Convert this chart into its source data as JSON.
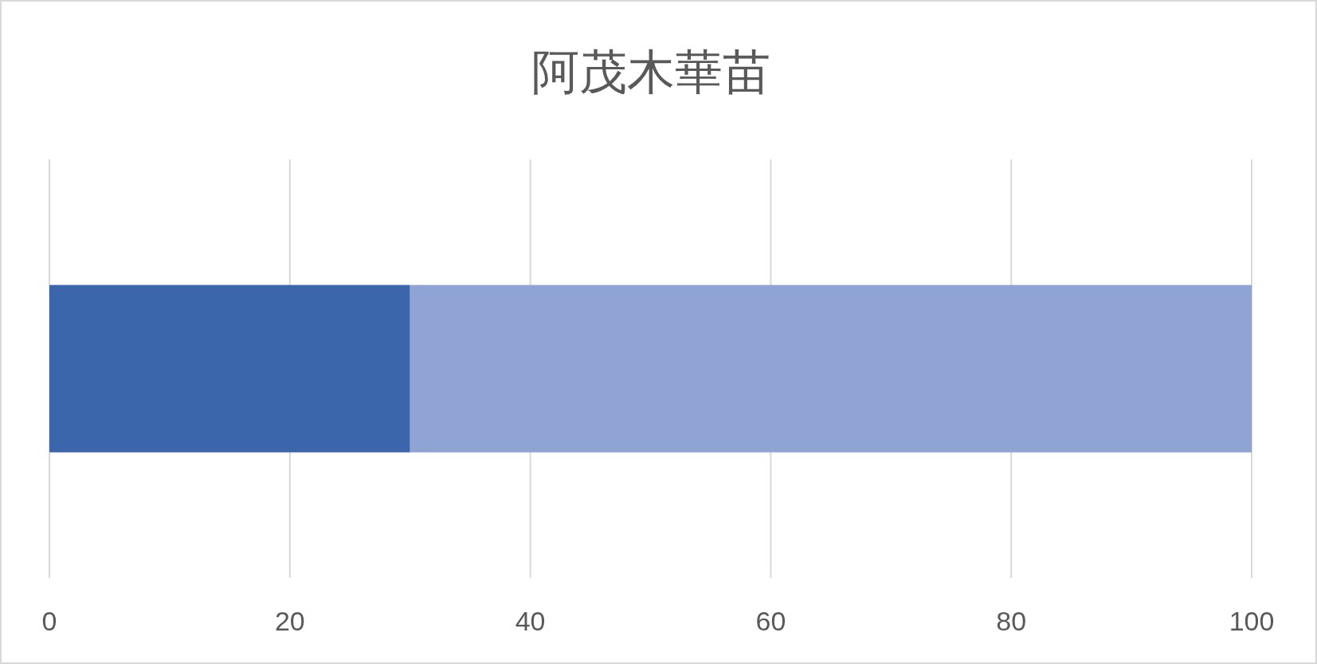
{
  "chart_data": {
    "type": "bar",
    "title": "阿茂木華苗",
    "orientation": "horizontal",
    "stacked": true,
    "categories": [
      null
    ],
    "series": [
      {
        "color": "#3c66ac",
        "values": [
          30
        ]
      },
      {
        "color": "#8fa3d4",
        "values": [
          70
        ]
      }
    ],
    "xlim": [
      0,
      100
    ],
    "xticks": [
      0,
      20,
      40,
      60,
      80,
      100
    ],
    "grid": "x"
  }
}
